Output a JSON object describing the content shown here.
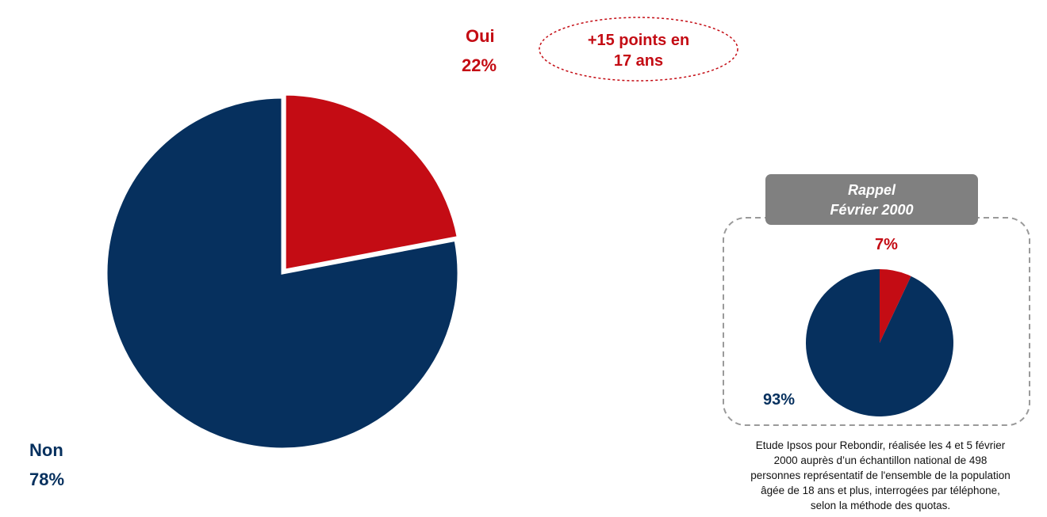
{
  "chart_data": [
    {
      "type": "pie",
      "categories": [
        "Oui",
        "Non"
      ],
      "values": [
        22,
        78
      ],
      "value_labels": [
        "22%",
        "78%"
      ],
      "colors": [
        "#c40c14",
        "#06305e"
      ],
      "annotation": "+15 points en\n17 ans"
    },
    {
      "type": "pie",
      "title": "Rappel\nFévrier 2000",
      "values": [
        7,
        93
      ],
      "value_labels": [
        "7%",
        "93%"
      ],
      "colors": [
        "#c40c14",
        "#06305e"
      ],
      "note": "Etude Ipsos pour Rebondir, réalisée les 4 et 5 février\n2000 auprès d’un échantillon national de 498\npersonnes représentatif de l'ensemble de la population\nâgée de 18 ans et plus, interrogées par téléphone,\nselon la méthode des quotas."
    }
  ]
}
